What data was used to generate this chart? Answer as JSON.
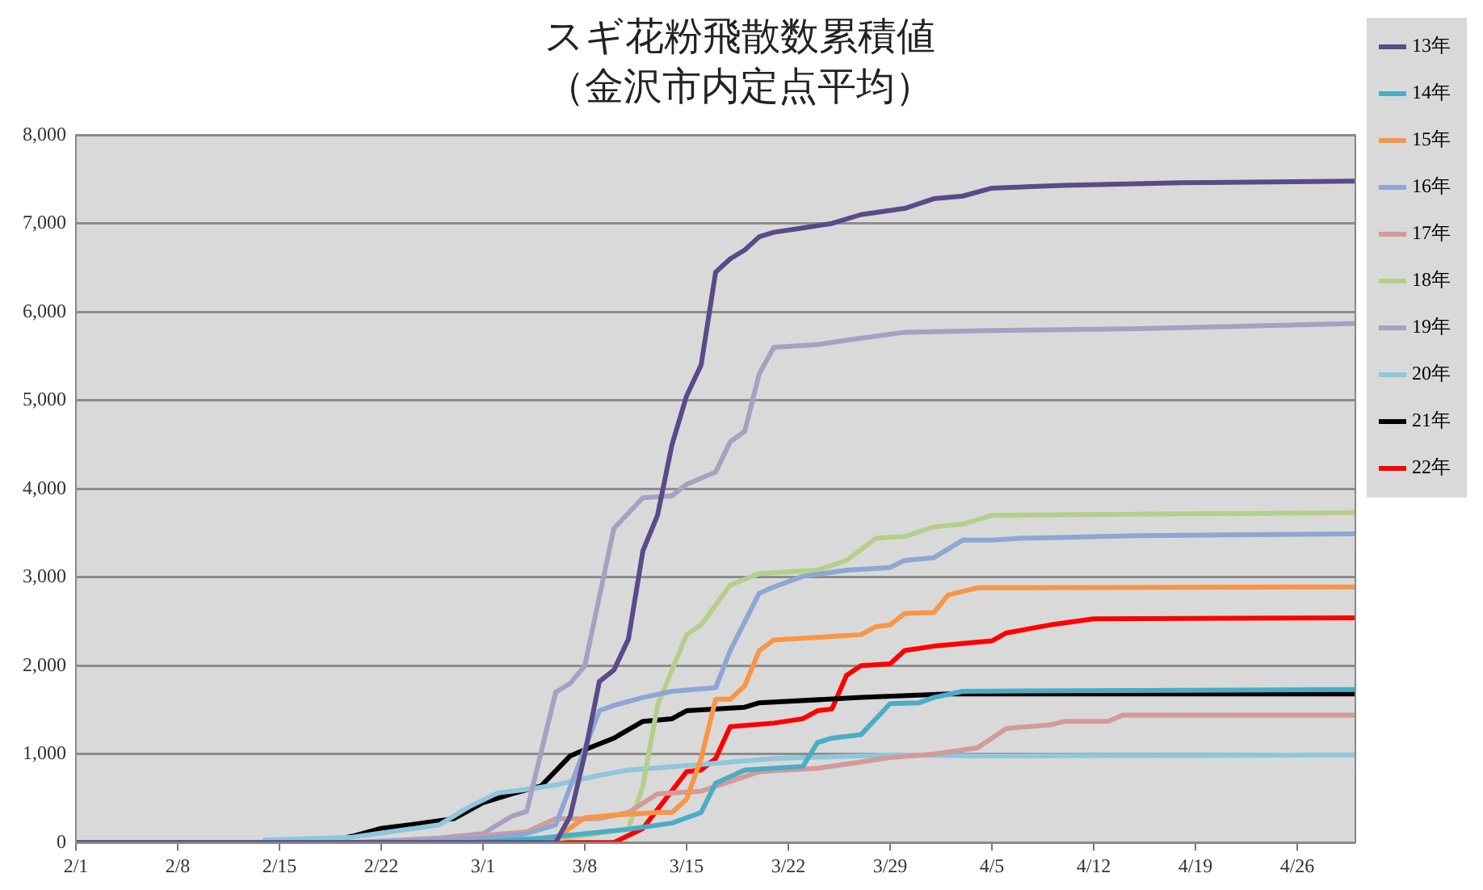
{
  "chart_data": {
    "type": "line",
    "title": "スギ花粉飛散数累積値",
    "subtitle": "（金沢市内定点平均）",
    "xlim": [
      "--02-01",
      "--04-30"
    ],
    "xticks": [
      {
        "value": "--02-01",
        "label": "2/1"
      },
      {
        "value": "--02-08",
        "label": "2/8"
      },
      {
        "value": "--02-15",
        "label": "2/15"
      },
      {
        "value": "--02-22",
        "label": "2/22"
      },
      {
        "value": "--03-01",
        "label": "3/1"
      },
      {
        "value": "--03-08",
        "label": "3/8"
      },
      {
        "value": "--03-15",
        "label": "3/15"
      },
      {
        "value": "--03-22",
        "label": "3/22"
      },
      {
        "value": "--03-29",
        "label": "3/29"
      },
      {
        "value": "--04-05",
        "label": "4/5"
      },
      {
        "value": "--04-12",
        "label": "4/12"
      },
      {
        "value": "--04-19",
        "label": "4/19"
      },
      {
        "value": "--04-26",
        "label": "4/26"
      }
    ],
    "ylim": [
      0,
      8000
    ],
    "yticks": [
      0,
      {
        "value": 1000,
        "label": "1,000"
      },
      {
        "value": 2000,
        "label": "2,000"
      },
      {
        "value": 3000,
        "label": "3,000"
      },
      {
        "value": 4000,
        "label": "4,000"
      },
      {
        "value": 5000,
        "label": "5,000"
      },
      {
        "value": 6000,
        "label": "6,000"
      },
      {
        "value": 7000,
        "label": "7,000"
      },
      {
        "value": 8000,
        "label": "8,000"
      }
    ],
    "grid": "y",
    "legend": "right",
    "marker": "none",
    "line_style": "solid",
    "series": [
      {
        "name": "13年",
        "color": "#5b4a8a",
        "x": [
          "--02-01",
          "--03-06",
          "--03-07",
          "--03-08",
          "--03-09",
          "--03-10",
          "--03-11",
          "--03-12",
          "--03-13",
          "--03-14",
          "--03-15",
          "--03-16",
          "--03-17",
          "--03-18",
          "--03-19",
          "--03-20",
          "--03-21",
          "--03-23",
          "--03-25",
          "--03-27",
          "--03-30",
          "--04-01",
          "--04-03",
          "--04-05",
          "--04-10",
          "--04-18",
          "--04-30"
        ],
        "values": [
          0,
          0,
          300,
          1000,
          1820,
          1950,
          2300,
          3300,
          3700,
          4500,
          5050,
          5400,
          6450,
          6600,
          6700,
          6850,
          6900,
          6950,
          7000,
          7100,
          7170,
          7280,
          7310,
          7400,
          7430,
          7460,
          7480
        ]
      },
      {
        "name": "14年",
        "color": "#4bacc6",
        "x": [
          "--02-01",
          "--02-28",
          "--03-05",
          "--03-11",
          "--03-14",
          "--03-16",
          "--03-17",
          "--03-19",
          "--03-23",
          "--03-24",
          "--03-25",
          "--03-27",
          "--03-29",
          "--03-31",
          "--04-01",
          "--04-03",
          "--04-30"
        ],
        "values": [
          0,
          0,
          50,
          150,
          220,
          340,
          670,
          820,
          860,
          1130,
          1180,
          1220,
          1570,
          1580,
          1640,
          1710,
          1730
        ]
      },
      {
        "name": "15年",
        "color": "#f79646",
        "x": [
          "--02-01",
          "--03-04",
          "--03-06",
          "--03-08",
          "--03-10",
          "--03-13",
          "--03-14",
          "--03-15",
          "--03-16",
          "--03-17",
          "--03-18",
          "--03-19",
          "--03-20",
          "--03-21",
          "--03-25",
          "--03-27",
          "--03-28",
          "--03-29",
          "--03-30",
          "--04-01",
          "--04-02",
          "--04-04",
          "--04-30"
        ],
        "values": [
          0,
          0,
          50,
          280,
          310,
          340,
          340,
          490,
          950,
          1620,
          1620,
          1770,
          2170,
          2290,
          2330,
          2350,
          2440,
          2460,
          2590,
          2600,
          2800,
          2880,
          2890
        ]
      },
      {
        "name": "16年",
        "color": "#8ea6d4",
        "x": [
          "--02-01",
          "--02-22",
          "--03-01",
          "--03-04",
          "--03-06",
          "--03-09",
          "--03-10",
          "--03-12",
          "--03-14",
          "--03-17",
          "--03-18",
          "--03-20",
          "--03-21",
          "--03-23",
          "--03-26",
          "--03-29",
          "--03-30",
          "--04-01",
          "--04-03",
          "--04-05",
          "--04-07",
          "--04-15",
          "--04-30"
        ],
        "values": [
          0,
          0,
          50,
          100,
          200,
          1490,
          1550,
          1640,
          1710,
          1750,
          2170,
          2820,
          2890,
          3010,
          3080,
          3110,
          3190,
          3220,
          3420,
          3420,
          3440,
          3470,
          3490
        ]
      },
      {
        "name": "17年",
        "color": "#d39a9a",
        "x": [
          "--02-01",
          "--02-22",
          "--03-01",
          "--03-04",
          "--03-06",
          "--03-09",
          "--03-11",
          "--03-13",
          "--03-16",
          "--03-20",
          "--03-24",
          "--03-27",
          "--03-29",
          "--04-01",
          "--04-04",
          "--04-06",
          "--04-09",
          "--04-10",
          "--04-13",
          "--04-14",
          "--04-30"
        ],
        "values": [
          0,
          0,
          80,
          120,
          270,
          270,
          340,
          550,
          580,
          800,
          840,
          910,
          960,
          1000,
          1070,
          1290,
          1330,
          1370,
          1370,
          1440,
          1440
        ]
      },
      {
        "name": "18年",
        "color": "#b5cf8a",
        "x": [
          "--02-01",
          "--03-04",
          "--03-08",
          "--03-11",
          "--03-12",
          "--03-13",
          "--03-15",
          "--03-16",
          "--03-18",
          "--03-20",
          "--03-24",
          "--03-26",
          "--03-28",
          "--03-30",
          "--04-01",
          "--04-03",
          "--04-05",
          "--04-30"
        ],
        "values": [
          0,
          0,
          80,
          160,
          640,
          1550,
          2350,
          2460,
          2910,
          3040,
          3080,
          3190,
          3440,
          3460,
          3570,
          3600,
          3700,
          3730
        ]
      },
      {
        "name": "19年",
        "color": "#a89fc2",
        "x": [
          "--02-01",
          "--02-20",
          "--02-26",
          "--03-01",
          "--03-03",
          "--03-04",
          "--03-06",
          "--03-07",
          "--03-08",
          "--03-10",
          "--03-12",
          "--03-14",
          "--03-15",
          "--03-17",
          "--03-18",
          "--03-19",
          "--03-20",
          "--03-21",
          "--03-24",
          "--03-26",
          "--03-30",
          "--04-05",
          "--04-15",
          "--04-30"
        ],
        "values": [
          0,
          0,
          50,
          100,
          300,
          350,
          1700,
          1800,
          2000,
          3550,
          3900,
          3920,
          4050,
          4190,
          4530,
          4650,
          5300,
          5600,
          5630,
          5680,
          5770,
          5790,
          5810,
          5870
        ]
      },
      {
        "name": "20年",
        "color": "#8fc7dc",
        "x": [
          "--02-14",
          "--02-20",
          "--02-26",
          "--02-28",
          "--03-02",
          "--03-04",
          "--03-06",
          "--03-09",
          "--03-11",
          "--03-15",
          "--03-21",
          "--03-29",
          "--04-05",
          "--04-30"
        ],
        "values": [
          30,
          60,
          200,
          400,
          560,
          600,
          650,
          760,
          820,
          870,
          950,
          990,
          980,
          990
        ]
      },
      {
        "name": "21年",
        "color": "#000000",
        "x": [
          "--02-01",
          "--02-18",
          "--02-20",
          "--02-22",
          "--02-24",
          "--02-27",
          "--03-01",
          "--03-03",
          "--03-05",
          "--03-07",
          "--03-08",
          "--03-10",
          "--03-12",
          "--03-14",
          "--03-15",
          "--03-19",
          "--03-20",
          "--03-27",
          "--04-02",
          "--04-30"
        ],
        "values": [
          0,
          0,
          70,
          160,
          200,
          270,
          450,
          550,
          640,
          980,
          1050,
          1180,
          1370,
          1400,
          1490,
          1530,
          1580,
          1640,
          1680,
          1680
        ]
      },
      {
        "name": "22年",
        "color": "#ff0000",
        "x": [
          "--02-01",
          "--03-10",
          "--03-12",
          "--03-15",
          "--03-16",
          "--03-17",
          "--03-18",
          "--03-21",
          "--03-23",
          "--03-24",
          "--03-25",
          "--03-26",
          "--03-27",
          "--03-29",
          "--03-30",
          "--04-01",
          "--04-05",
          "--04-06",
          "--04-09",
          "--04-12",
          "--04-30"
        ],
        "values": [
          0,
          0,
          160,
          800,
          820,
          950,
          1310,
          1350,
          1400,
          1490,
          1510,
          1890,
          2000,
          2020,
          2170,
          2220,
          2280,
          2370,
          2460,
          2530,
          2540
        ]
      }
    ]
  }
}
